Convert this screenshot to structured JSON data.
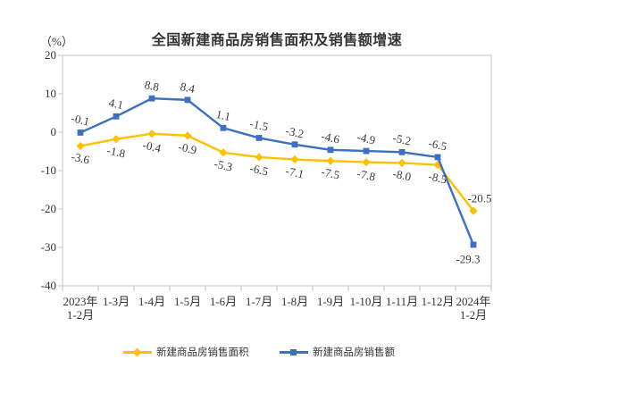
{
  "chart_data": {
    "type": "line",
    "title": "全国新建商品房销售面积及销售额增速",
    "y_unit_label": "（%）",
    "ylim": [
      -40,
      20
    ],
    "y_ticks": [
      20,
      10,
      0,
      -10,
      -20,
      -30,
      -40
    ],
    "grid": false,
    "legend_position": "bottom",
    "categories": [
      "2023年\n1-2月",
      "1-3月",
      "1-4月",
      "1-5月",
      "1-6月",
      "1-7月",
      "1-8月",
      "1-9月",
      "1-10月",
      "1-11月",
      "1-12月",
      "2024年\n1-2月"
    ],
    "series": [
      {
        "name": "新建商品房销售面积",
        "color": "#FFC000",
        "marker": "diamond",
        "label_side": "below",
        "values": [
          -3.6,
          -1.8,
          -0.4,
          -0.9,
          -5.3,
          -6.5,
          -7.1,
          -7.5,
          -7.8,
          -8.0,
          -8.5,
          -20.5
        ]
      },
      {
        "name": "新建商品房销售额",
        "color": "#3C70C4",
        "marker": "square",
        "label_side": "above",
        "values": [
          -0.1,
          4.1,
          8.8,
          8.4,
          1.1,
          -1.5,
          -3.2,
          -4.6,
          -4.9,
          -5.2,
          -6.5,
          -29.3
        ]
      }
    ]
  }
}
